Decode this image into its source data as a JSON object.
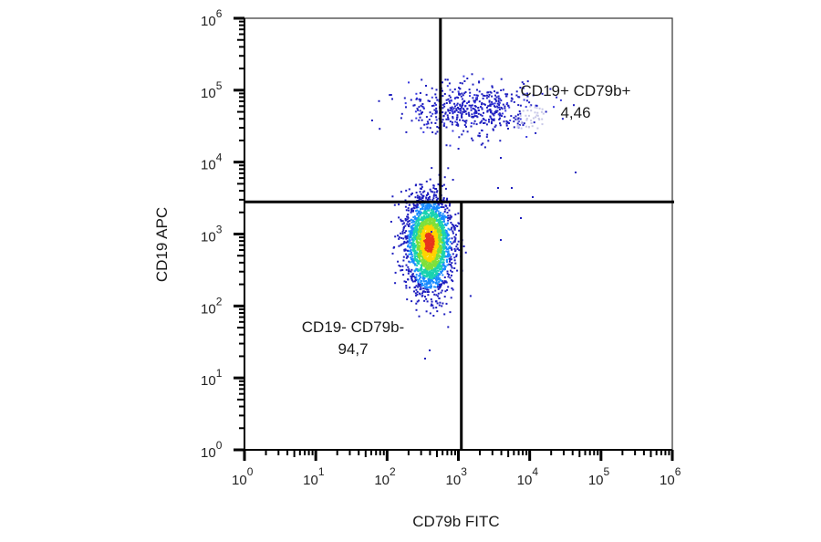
{
  "chart_data": {
    "type": "scatter",
    "subtype": "flow-cytometry-density-dot-plot",
    "title": "",
    "xlabel": "CD79b FITC",
    "ylabel": "CD19 APC",
    "x_scale": "log",
    "y_scale": "log",
    "xlim": [
      1,
      1000000
    ],
    "ylim": [
      1,
      1000000
    ],
    "x_ticks": [
      "10^0",
      "10^1",
      "10^2",
      "10^3",
      "10^4",
      "10^5",
      "10^6"
    ],
    "y_ticks": [
      "10^0",
      "10^1",
      "10^2",
      "10^3",
      "10^4",
      "10^5",
      "10^6"
    ],
    "grid": false,
    "gates": {
      "horizontal_y": 2800,
      "upper_vertical_x": 560,
      "lower_vertical_x": 1100
    },
    "populations": [
      {
        "name": "CD19+ CD79b+",
        "percent": "4,46",
        "center_x": 1500,
        "center_y": 55000,
        "spread_log_x": 0.45,
        "spread_log_y": 0.18,
        "color_profile": "sparse-blue"
      },
      {
        "name": "CD19- CD79b-",
        "percent": "94,7",
        "center_x": 380,
        "center_y": 800,
        "spread_log_x": 0.16,
        "spread_log_y": 0.3,
        "color_profile": "density-rainbow"
      }
    ],
    "colors": {
      "low_density": "#1f1fbf",
      "mid_low": "#1a8cff",
      "mid": "#19d3b0",
      "mid_high": "#7fe03a",
      "high": "#ffd400",
      "peak": "#e8341c",
      "axis": "#000000"
    }
  },
  "labels": {
    "y_title": "CD19 APC",
    "x_title": "CD79b FITC",
    "upper_right_name": "CD19+ CD79b+",
    "upper_right_pct": "4,46",
    "lower_left_name": "CD19- CD79b-",
    "lower_left_pct": "94,7"
  },
  "tick_labels": {
    "x": [
      {
        "base": "10",
        "exp": "0"
      },
      {
        "base": "10",
        "exp": "1"
      },
      {
        "base": "10",
        "exp": "2"
      },
      {
        "base": "10",
        "exp": "3"
      },
      {
        "base": "10",
        "exp": "4"
      },
      {
        "base": "10",
        "exp": "5"
      },
      {
        "base": "10",
        "exp": "6"
      }
    ],
    "y": [
      {
        "base": "10",
        "exp": "0"
      },
      {
        "base": "10",
        "exp": "1"
      },
      {
        "base": "10",
        "exp": "2"
      },
      {
        "base": "10",
        "exp": "3"
      },
      {
        "base": "10",
        "exp": "4"
      },
      {
        "base": "10",
        "exp": "5"
      },
      {
        "base": "10",
        "exp": "6"
      }
    ]
  }
}
